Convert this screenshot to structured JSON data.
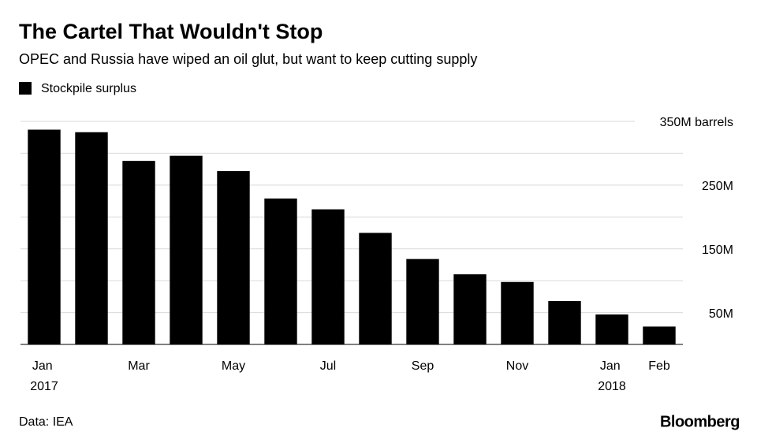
{
  "chart_data": {
    "type": "bar",
    "title": "The Cartel That Wouldn't Stop",
    "subtitle": "OPEC and Russia have wiped an oil glut, but want to keep cutting supply",
    "categories": [
      "Jan 2017",
      null,
      "Mar",
      null,
      "May",
      null,
      "Jul",
      null,
      "Sep",
      null,
      "Nov",
      null,
      "Jan 2018",
      "Feb"
    ],
    "series": [
      {
        "name": "Stockpile surplus",
        "color": "#000000",
        "values": [
          337,
          333,
          288,
          296,
          272,
          229,
          212,
          175,
          134,
          110,
          98,
          68,
          47,
          28
        ]
      }
    ],
    "ylim": [
      0,
      350
    ],
    "yticks": [
      {
        "value": 50,
        "label": "50M"
      },
      {
        "value": 150,
        "label": "150M"
      },
      {
        "value": 250,
        "label": "250M"
      },
      {
        "value": 350,
        "label": "350M barrels"
      }
    ],
    "ygrid": [
      0,
      50,
      100,
      150,
      200,
      250,
      300,
      350
    ],
    "source": "Data: IEA",
    "credit": "Bloomberg"
  }
}
